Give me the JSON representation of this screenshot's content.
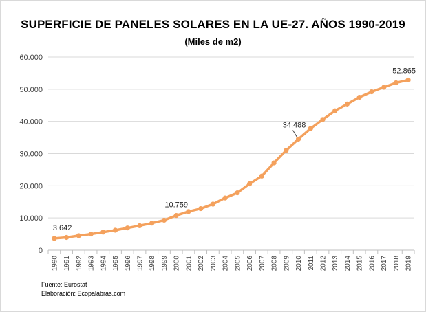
{
  "chart_data": {
    "type": "line",
    "title": "SUPERFICIE DE PANELES SOLARES EN LA UE-27. AÑOS 1990-2019",
    "subtitle": "(Miles de m2)",
    "xlabel": "",
    "ylabel": "",
    "ylim": [
      0,
      60000
    ],
    "yticks": [
      "0",
      "10.000",
      "20.000",
      "30.000",
      "40.000",
      "50.000",
      "60.000"
    ],
    "grid": true,
    "legend": "none",
    "line_color": "#f4a15d",
    "categories": [
      "1990",
      "1991",
      "1992",
      "1993",
      "1994",
      "1995",
      "1996",
      "1997",
      "1998",
      "1999",
      "2000",
      "2001",
      "2002",
      "2003",
      "2004",
      "2005",
      "2006",
      "2007",
      "2008",
      "2009",
      "2010",
      "2011",
      "2012",
      "2013",
      "2014",
      "2015",
      "2016",
      "2017",
      "2018",
      "2019"
    ],
    "values": [
      3642,
      3950,
      4500,
      5000,
      5600,
      6200,
      6900,
      7600,
      8400,
      9300,
      10759,
      12000,
      12900,
      14300,
      16200,
      17800,
      20600,
      23000,
      27100,
      31000,
      34488,
      37800,
      40600,
      43300,
      45400,
      47500,
      49200,
      50600,
      52000,
      52865
    ],
    "data_labels": [
      {
        "category": "1990",
        "text": "3.642"
      },
      {
        "category": "2000",
        "text": "10.759"
      },
      {
        "category": "2010",
        "text": "34.488"
      },
      {
        "category": "2019",
        "text": "52.865"
      }
    ]
  },
  "footer": {
    "source": "Fuente: Eurostat",
    "credit": "Elaboración: Ecopalabras.com"
  }
}
